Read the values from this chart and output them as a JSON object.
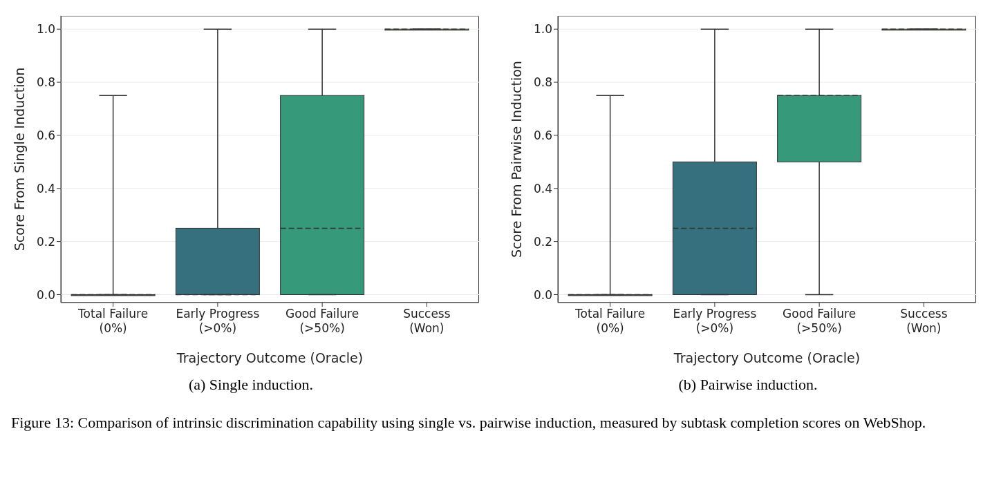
{
  "chart_data": [
    {
      "type": "box",
      "xlabel": "Trajectory Outcome (Oracle)",
      "ylabel": "Score From Single Induction",
      "categories": [
        "Total Failure\n(0%)",
        "Early Progress\n(>0%)",
        "Good Failure\n(>50%)",
        "Success\n(Won)"
      ],
      "colors": [
        "#4a4a7e",
        "#36707f",
        "#35997a",
        "#7ad151"
      ],
      "boxes": [
        {
          "low": 0,
          "q1": 0,
          "median": 0,
          "q3": 0,
          "high": 0.75
        },
        {
          "low": 0,
          "q1": 0,
          "median": 0,
          "q3": 0.25,
          "high": 1
        },
        {
          "low": 0,
          "q1": 0,
          "median": 0.25,
          "q3": 0.75,
          "high": 1
        },
        {
          "low": 1,
          "q1": 1,
          "median": 1,
          "q3": 1,
          "high": 1
        }
      ],
      "ylim": [
        -0.03,
        1.05
      ],
      "yticks": [
        {
          "value": 0,
          "label": "0.0"
        },
        {
          "value": 0.2,
          "label": "0.2"
        },
        {
          "value": 0.4,
          "label": "0.4"
        },
        {
          "value": 0.6,
          "label": "0.6"
        },
        {
          "value": 0.8,
          "label": "0.8"
        },
        {
          "value": 1,
          "label": "1.0"
        }
      ],
      "grid": "y",
      "legend": false,
      "annotations": [
        "(a) Single induction."
      ]
    },
    {
      "type": "box",
      "xlabel": "Trajectory Outcome (Oracle)",
      "ylabel": "Score From Pairwise Induction",
      "categories": [
        "Total Failure\n(0%)",
        "Early Progress\n(>0%)",
        "Good Failure\n(>50%)",
        "Success\n(Won)"
      ],
      "colors": [
        "#4a4a7e",
        "#36707f",
        "#35997a",
        "#7ad151"
      ],
      "boxes": [
        {
          "low": 0,
          "q1": 0,
          "median": 0,
          "q3": 0,
          "high": 0.75
        },
        {
          "low": 0,
          "q1": 0,
          "median": 0.25,
          "q3": 0.5,
          "high": 1
        },
        {
          "low": 0,
          "q1": 0.5,
          "median": 0.75,
          "q3": 0.75,
          "high": 1
        },
        {
          "low": 1,
          "q1": 1,
          "median": 1,
          "q3": 1,
          "high": 1
        }
      ],
      "ylim": [
        -0.03,
        1.05
      ],
      "yticks": [
        {
          "value": 0,
          "label": "0.0"
        },
        {
          "value": 0.2,
          "label": "0.2"
        },
        {
          "value": 0.4,
          "label": "0.4"
        },
        {
          "value": 0.6,
          "label": "0.6"
        },
        {
          "value": 0.8,
          "label": "0.8"
        },
        {
          "value": 1,
          "label": "1.0"
        }
      ],
      "grid": "y",
      "legend": false,
      "annotations": [
        "(b) Pairwise induction.",
        "Figure 13: Comparison of intrinsic discrimination capability using single vs. pairwise induction, measured by subtask completion scores on WebShop."
      ]
    }
  ]
}
